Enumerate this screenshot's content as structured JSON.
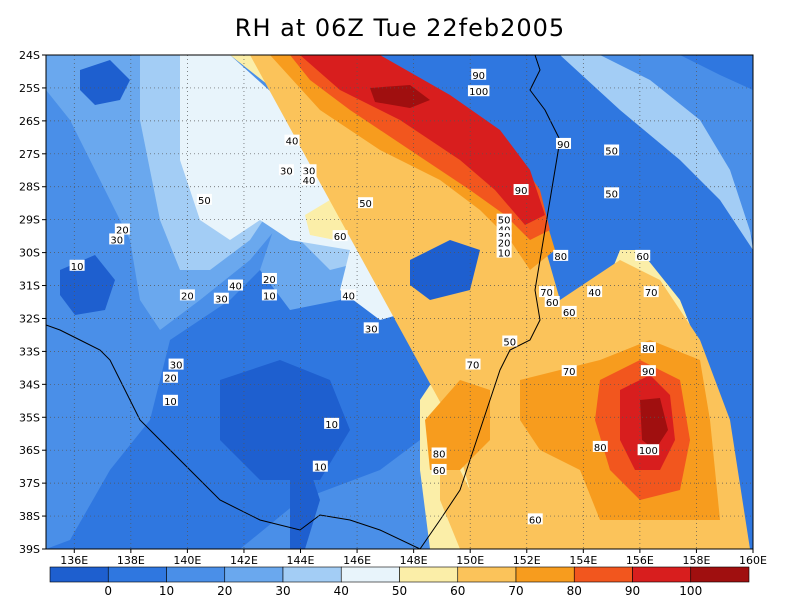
{
  "title": "RH at 06Z Tue 22feb2005",
  "map": {
    "lon_range": [
      135,
      160
    ],
    "lat_range": [
      -39,
      -24
    ],
    "x_ticks": [
      {
        "label": "136E",
        "lon": 136
      },
      {
        "label": "138E",
        "lon": 138
      },
      {
        "label": "140E",
        "lon": 140
      },
      {
        "label": "142E",
        "lon": 142
      },
      {
        "label": "144E",
        "lon": 144
      },
      {
        "label": "146E",
        "lon": 146
      },
      {
        "label": "148E",
        "lon": 148
      },
      {
        "label": "150E",
        "lon": 150
      },
      {
        "label": "152E",
        "lon": 152
      },
      {
        "label": "154E",
        "lon": 154
      },
      {
        "label": "156E",
        "lon": 156
      },
      {
        "label": "158E",
        "lon": 158
      },
      {
        "label": "160E",
        "lon": 160
      }
    ],
    "y_ticks": [
      {
        "label": "24S",
        "lat": -24
      },
      {
        "label": "25S",
        "lat": -25
      },
      {
        "label": "26S",
        "lat": -26
      },
      {
        "label": "27S",
        "lat": -27
      },
      {
        "label": "28S",
        "lat": -28
      },
      {
        "label": "29S",
        "lat": -29
      },
      {
        "label": "30S",
        "lat": -30
      },
      {
        "label": "31S",
        "lat": -31
      },
      {
        "label": "32S",
        "lat": -32
      },
      {
        "label": "33S",
        "lat": -33
      },
      {
        "label": "34S",
        "lat": -34
      },
      {
        "label": "35S",
        "lat": -35
      },
      {
        "label": "36S",
        "lat": -36
      },
      {
        "label": "37S",
        "lat": -37
      },
      {
        "label": "38S",
        "lat": -38
      },
      {
        "label": "39S",
        "lat": -39
      }
    ],
    "contour_labels": [
      {
        "text": "90",
        "lon": 150.3,
        "lat": -24.6
      },
      {
        "text": "100",
        "lon": 150.3,
        "lat": -25.1
      },
      {
        "text": "90",
        "lon": 153.3,
        "lat": -26.7
      },
      {
        "text": "50",
        "lon": 155.0,
        "lat": -26.9
      },
      {
        "text": "40",
        "lon": 143.7,
        "lat": -26.6
      },
      {
        "text": "30",
        "lon": 143.5,
        "lat": -27.5
      },
      {
        "text": "30",
        "lon": 144.3,
        "lat": -27.5
      },
      {
        "text": "40",
        "lon": 144.3,
        "lat": -27.8
      },
      {
        "text": "50",
        "lon": 140.6,
        "lat": -28.4
      },
      {
        "text": "50",
        "lon": 146.3,
        "lat": -28.5
      },
      {
        "text": "90",
        "lon": 151.8,
        "lat": -28.1
      },
      {
        "text": "50",
        "lon": 155.0,
        "lat": -28.2
      },
      {
        "text": "60",
        "lon": 145.4,
        "lat": -29.5
      },
      {
        "text": "50",
        "lon": 151.2,
        "lat": -29.0
      },
      {
        "text": "40",
        "lon": 151.2,
        "lat": -29.3
      },
      {
        "text": "30",
        "lon": 151.2,
        "lat": -29.5
      },
      {
        "text": "20",
        "lon": 151.2,
        "lat": -29.7
      },
      {
        "text": "10",
        "lon": 151.2,
        "lat": -30.0
      },
      {
        "text": "80",
        "lon": 153.2,
        "lat": -30.1
      },
      {
        "text": "60",
        "lon": 156.1,
        "lat": -30.1
      },
      {
        "text": "20",
        "lon": 137.7,
        "lat": -29.3
      },
      {
        "text": "30",
        "lon": 137.5,
        "lat": -29.6
      },
      {
        "text": "10",
        "lon": 136.1,
        "lat": -30.4
      },
      {
        "text": "20",
        "lon": 140.0,
        "lat": -31.3
      },
      {
        "text": "40",
        "lon": 141.7,
        "lat": -31.0
      },
      {
        "text": "30",
        "lon": 141.2,
        "lat": -31.4
      },
      {
        "text": "20",
        "lon": 142.9,
        "lat": -30.8
      },
      {
        "text": "10",
        "lon": 142.9,
        "lat": -31.3
      },
      {
        "text": "40",
        "lon": 145.7,
        "lat": -31.3
      },
      {
        "text": "30",
        "lon": 146.5,
        "lat": -32.3
      },
      {
        "text": "70",
        "lon": 152.7,
        "lat": -31.2
      },
      {
        "text": "60",
        "lon": 152.9,
        "lat": -31.5
      },
      {
        "text": "40",
        "lon": 154.4,
        "lat": -31.2
      },
      {
        "text": "60",
        "lon": 153.5,
        "lat": -31.8
      },
      {
        "text": "70",
        "lon": 156.4,
        "lat": -31.2
      },
      {
        "text": "50",
        "lon": 151.4,
        "lat": -32.7
      },
      {
        "text": "80",
        "lon": 156.3,
        "lat": -32.9
      },
      {
        "text": "30",
        "lon": 139.6,
        "lat": -33.4
      },
      {
        "text": "20",
        "lon": 139.4,
        "lat": -33.8
      },
      {
        "text": "10",
        "lon": 139.4,
        "lat": -34.5
      },
      {
        "text": "70",
        "lon": 150.1,
        "lat": -33.4
      },
      {
        "text": "70",
        "lon": 153.5,
        "lat": -33.6
      },
      {
        "text": "90",
        "lon": 156.3,
        "lat": -33.6
      },
      {
        "text": "10",
        "lon": 145.1,
        "lat": -35.2
      },
      {
        "text": "80",
        "lon": 148.9,
        "lat": -36.1
      },
      {
        "text": "80",
        "lon": 154.6,
        "lat": -35.9
      },
      {
        "text": "100",
        "lon": 156.3,
        "lat": -36.0
      },
      {
        "text": "60",
        "lon": 148.9,
        "lat": -36.6
      },
      {
        "text": "10",
        "lon": 144.7,
        "lat": -36.5
      },
      {
        "text": "60",
        "lon": 152.3,
        "lat": -38.1
      }
    ]
  },
  "colorbar": {
    "labels": [
      "0",
      "10",
      "20",
      "30",
      "40",
      "50",
      "60",
      "70",
      "80",
      "90",
      "100"
    ],
    "colors": [
      "#1e5fcf",
      "#2f77e0",
      "#4a8fe8",
      "#6aa8ee",
      "#a3cdf5",
      "#e8f4fb",
      "#fbeea8",
      "#fbc35a",
      "#f79c1e",
      "#f2561e",
      "#d81e1e",
      "#a00f0f"
    ]
  },
  "colors": {
    "rh_0": "#1e5fcf",
    "rh_10": "#2f77e0",
    "rh_20": "#4a8fe8",
    "rh_30": "#6aa8ee",
    "rh_40": "#a3cdf5",
    "rh_50": "#e8f4fb",
    "rh_60": "#fbeea8",
    "rh_70": "#fbc35a",
    "rh_80": "#f79c1e",
    "rh_90": "#f2561e",
    "rh_100": "#d81e1e",
    "rh_110": "#a00f0f"
  }
}
